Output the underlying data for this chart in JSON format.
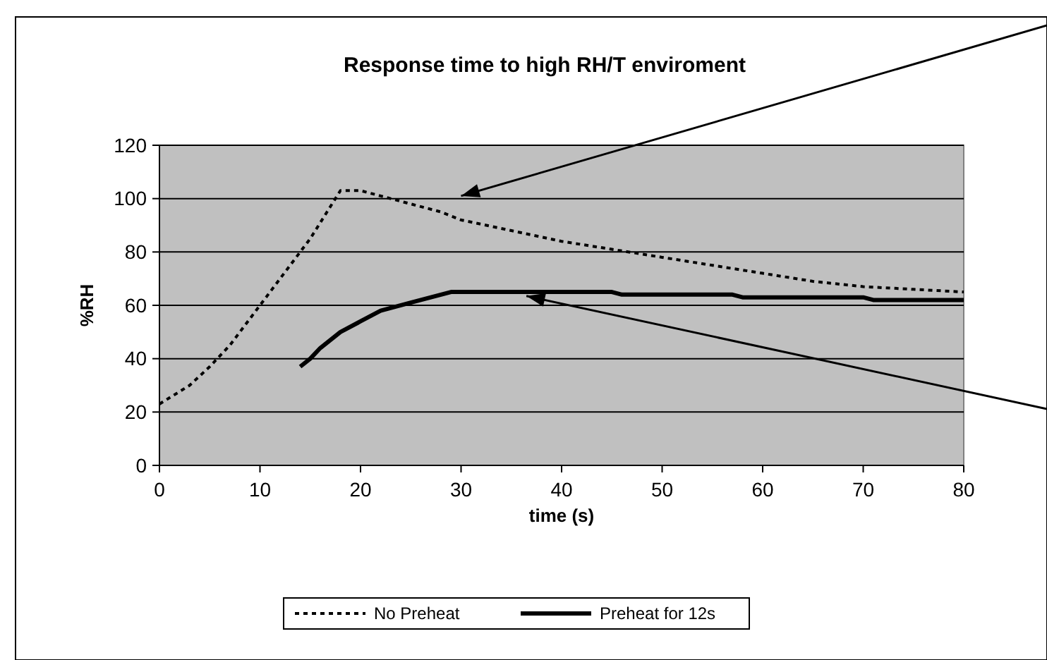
{
  "chart_data": {
    "type": "line",
    "title": "Response time to high RH/T enviroment",
    "xlabel": "time (s)",
    "ylabel": "%RH",
    "xlim": [
      0,
      80
    ],
    "xticks": [
      0,
      10,
      20,
      30,
      40,
      50,
      60,
      70,
      80
    ],
    "ylim": [
      0,
      120
    ],
    "yticks": [
      0,
      20,
      40,
      60,
      80,
      100,
      120
    ],
    "grid": "y",
    "legend": "bottom",
    "series": [
      {
        "name": "No Preheat",
        "color": "#000000",
        "line_style": "dotted",
        "x": [
          0,
          3,
          5,
          7,
          9,
          11,
          13,
          15,
          17,
          18,
          20,
          22,
          25,
          28,
          30,
          35,
          40,
          45,
          50,
          55,
          60,
          65,
          70,
          75,
          80
        ],
        "values": [
          23,
          30,
          37,
          45,
          55,
          65,
          75,
          85,
          97,
          103,
          103,
          101,
          98,
          95,
          92,
          88,
          84,
          81,
          78,
          75,
          72,
          69,
          67,
          66,
          65
        ]
      },
      {
        "name": "Preheat for 12s",
        "color": "#000000",
        "line_style": "solid",
        "x": [
          14,
          15,
          16,
          18,
          20,
          22,
          25,
          27,
          29,
          45,
          46,
          57,
          58,
          70,
          71,
          80
        ],
        "values": [
          37,
          40,
          44,
          50,
          54,
          58,
          61,
          63,
          65,
          65,
          64,
          64,
          63,
          63,
          62,
          62
        ]
      }
    ]
  }
}
